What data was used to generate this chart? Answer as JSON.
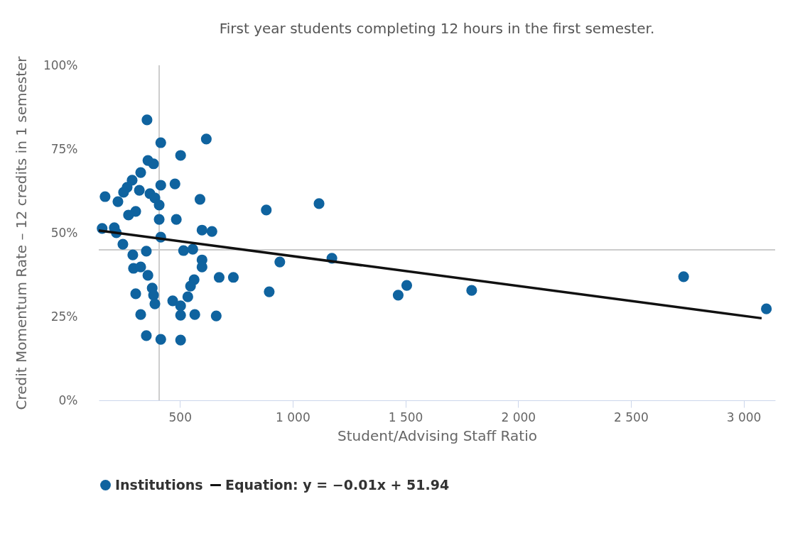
{
  "chart_data": {
    "type": "scatter",
    "subtitle": "First year students completing 12 hours in the first semester.",
    "xlabel": "Student/Advising Staff Ratio",
    "ylabel": "Credit Momentum Rate – 12 credits in 1 semester",
    "xlim": [
      140,
      3140
    ],
    "ylim": [
      0,
      100
    ],
    "xticks": [
      500,
      {
        "value": 1000,
        "label": "1 000"
      },
      {
        "value": 1500,
        "label": "1 500"
      },
      {
        "value": 2000,
        "label": "2 000"
      },
      {
        "value": 2500,
        "label": "2 500"
      },
      {
        "value": 3000,
        "label": "3 000"
      }
    ],
    "yticks": [
      {
        "value": 0,
        "label": "0%"
      },
      {
        "value": 25,
        "label": "25%"
      },
      {
        "value": 50,
        "label": "50%"
      },
      {
        "value": 75,
        "label": "75%"
      },
      {
        "value": 100,
        "label": "100%"
      }
    ],
    "grid": false,
    "legend": "bottom",
    "marker": "circle",
    "ref_lines": [
      {
        "axis": "x",
        "value": 408,
        "color": "#cccccc"
      },
      {
        "axis": "y",
        "value": 44.9,
        "color": "#cccccc"
      }
    ],
    "series": [
      {
        "name": "Institutions",
        "color": "#0f639f",
        "x": [
          354,
          415,
          617,
          503,
          358,
          383,
          326,
          288,
          266,
          250,
          320,
          415,
          478,
          168,
          225,
          367,
          389,
          408,
          589,
          304,
          272,
          408,
          484,
          155,
          209,
          218,
          598,
          642,
          415,
          247,
          351,
          291,
          516,
          557,
          598,
          598,
          674,
          294,
          326,
          358,
          563,
          547,
          535,
          304,
          377,
          383,
          389,
          468,
          503,
          326,
          503,
          566,
          661,
          351,
          415,
          503,
          883,
          1117,
          943,
          1174,
          737,
          896,
          1506,
          1468,
          1794,
          2734,
          3101
        ],
        "values": [
          83.7,
          76.9,
          78.0,
          73.1,
          71.6,
          70.6,
          68.0,
          65.7,
          63.6,
          62.1,
          62.7,
          64.2,
          64.6,
          60.8,
          59.3,
          61.7,
          60.4,
          58.3,
          60.0,
          56.4,
          55.3,
          54.0,
          54.0,
          51.3,
          51.5,
          50.0,
          50.8,
          50.4,
          48.7,
          46.6,
          44.5,
          43.4,
          44.7,
          45.1,
          41.9,
          39.8,
          36.7,
          39.4,
          39.8,
          37.3,
          36.0,
          34.1,
          30.9,
          31.8,
          33.5,
          31.4,
          28.8,
          29.7,
          28.2,
          25.6,
          25.4,
          25.6,
          25.2,
          19.3,
          18.2,
          18.0,
          56.8,
          58.7,
          41.3,
          42.4,
          36.7,
          32.4,
          34.3,
          31.4,
          32.8,
          36.9,
          27.3
        ]
      },
      {
        "name": "Equation: y = −0.01x + 51.94",
        "type": "line",
        "color": "#111111",
        "marker": "none",
        "x": [
          140,
          3080
        ],
        "values": [
          50.7,
          24.5
        ]
      }
    ]
  }
}
